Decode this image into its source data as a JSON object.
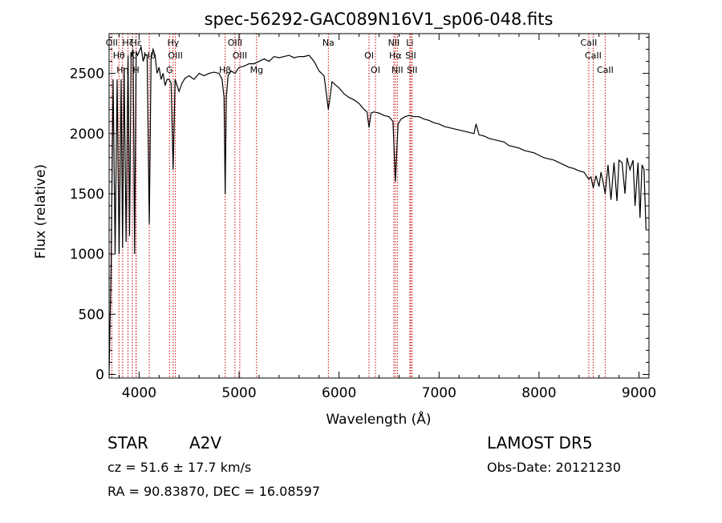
{
  "chart_data": {
    "type": "line",
    "title": "spec-56292-GAC089N16V1_sp06-048.fits",
    "xlabel": "Wavelength (Å)",
    "ylabel": "Flux (relative)",
    "xlim": [
      3700,
      9100
    ],
    "ylim": [
      -30,
      2830
    ],
    "xticks": [
      4000,
      5000,
      6000,
      7000,
      8000,
      9000
    ],
    "xtick_labels": [
      "4000",
      "5000",
      "6000",
      "7000",
      "8000",
      "9000"
    ],
    "yticks": [
      0,
      500,
      1000,
      1500,
      2000,
      2500
    ],
    "ytick_labels": [
      "0",
      "500",
      "1000",
      "1500",
      "2000",
      "2500"
    ],
    "grid": false,
    "line_color": "#000000",
    "marker_color": "#cc0000",
    "series": [
      {
        "x": [
          3700,
          3720,
          3740,
          3760,
          3780,
          3800,
          3820,
          3835,
          3850,
          3870,
          3889,
          3905,
          3920,
          3940,
          3955,
          3970,
          3985,
          4000,
          4020,
          4040,
          4060,
          4080,
          4102,
          4120,
          4140,
          4160,
          4180,
          4200,
          4220,
          4240,
          4260,
          4280,
          4300,
          4320,
          4340,
          4360,
          4380,
          4400,
          4430,
          4460,
          4500,
          4550,
          4600,
          4650,
          4700,
          4750,
          4800,
          4830,
          4850,
          4861,
          4872,
          4890,
          4920,
          4960,
          5000,
          5050,
          5100,
          5150,
          5200,
          5250,
          5300,
          5350,
          5400,
          5450,
          5500,
          5550,
          5600,
          5650,
          5700,
          5750,
          5800,
          5850,
          5893,
          5930,
          5970,
          6000,
          6050,
          6100,
          6150,
          6200,
          6250,
          6280,
          6300,
          6320,
          6350,
          6400,
          6450,
          6500,
          6540,
          6563,
          6590,
          6620,
          6660,
          6700,
          6750,
          6800,
          6850,
          6900,
          6950,
          7000,
          7050,
          7100,
          7150,
          7200,
          7250,
          7300,
          7350,
          7370,
          7400,
          7450,
          7500,
          7550,
          7600,
          7650,
          7700,
          7750,
          7800,
          7850,
          7900,
          7950,
          8000,
          8050,
          8100,
          8150,
          8200,
          8250,
          8300,
          8350,
          8400,
          8450,
          8498,
          8520,
          8542,
          8570,
          8600,
          8620,
          8640,
          8662,
          8690,
          8720,
          8750,
          8780,
          8800,
          8830,
          8860,
          8880,
          8910,
          8940,
          8960,
          8990,
          9010,
          9030,
          9050,
          9070
        ],
        "y": [
          0,
          900,
          2450,
          1000,
          2450,
          1000,
          2450,
          1050,
          2550,
          1100,
          2650,
          1150,
          2650,
          2700,
          1000,
          2680,
          2650,
          2680,
          2720,
          2600,
          2660,
          2650,
          1250,
          2620,
          2700,
          2650,
          2500,
          2550,
          2450,
          2500,
          2400,
          2450,
          2450,
          2420,
          1700,
          2450,
          2400,
          2350,
          2420,
          2460,
          2480,
          2450,
          2500,
          2480,
          2500,
          2510,
          2500,
          2450,
          2300,
          1500,
          2300,
          2480,
          2520,
          2500,
          2550,
          2560,
          2580,
          2580,
          2600,
          2620,
          2600,
          2640,
          2630,
          2640,
          2650,
          2630,
          2640,
          2640,
          2650,
          2600,
          2520,
          2480,
          2200,
          2430,
          2400,
          2380,
          2330,
          2300,
          2280,
          2250,
          2200,
          2180,
          2050,
          2170,
          2180,
          2170,
          2150,
          2140,
          2100,
          1600,
          2080,
          2120,
          2140,
          2150,
          2140,
          2140,
          2120,
          2110,
          2090,
          2080,
          2060,
          2050,
          2040,
          2030,
          2020,
          2010,
          2000,
          2080,
          1990,
          1980,
          1960,
          1950,
          1940,
          1930,
          1900,
          1890,
          1880,
          1860,
          1850,
          1840,
          1820,
          1800,
          1790,
          1780,
          1760,
          1740,
          1720,
          1710,
          1690,
          1680,
          1620,
          1640,
          1550,
          1650,
          1560,
          1680,
          1600,
          1500,
          1740,
          1450,
          1760,
          1440,
          1780,
          1760,
          1500,
          1800,
          1700,
          1780,
          1400,
          1760,
          1300,
          1740,
          1700,
          1200
        ]
      }
    ],
    "lines": [
      {
        "x": 3727,
        "label": "OII"
      },
      {
        "x": 3798,
        "label": "Hθ"
      },
      {
        "x": 3835,
        "label": "Hη"
      },
      {
        "x": 3889,
        "label": "Hζ"
      },
      {
        "x": 3934,
        "label": "K"
      },
      {
        "x": 3970,
        "label": "H"
      },
      {
        "x": 3970,
        "label": "Hε"
      },
      {
        "x": 4102,
        "label": "Hδ"
      },
      {
        "x": 4304,
        "label": "G"
      },
      {
        "x": 4341,
        "label": "Hγ"
      },
      {
        "x": 4363,
        "label": "OIII"
      },
      {
        "x": 4861,
        "label": "Hβ"
      },
      {
        "x": 4959,
        "label": "OIII"
      },
      {
        "x": 5007,
        "label": "OIII"
      },
      {
        "x": 5175,
        "label": "Mg"
      },
      {
        "x": 5893,
        "label": "Na"
      },
      {
        "x": 6300,
        "label": "OI"
      },
      {
        "x": 6364,
        "label": "OI"
      },
      {
        "x": 6548,
        "label": "NII"
      },
      {
        "x": 6563,
        "label": "Hα"
      },
      {
        "x": 6583,
        "label": "NII"
      },
      {
        "x": 6708,
        "label": "Li"
      },
      {
        "x": 6717,
        "label": "SII"
      },
      {
        "x": 6731,
        "label": "SII"
      },
      {
        "x": 8498,
        "label": "CaII"
      },
      {
        "x": 8542,
        "label": "CaII"
      },
      {
        "x": 8662,
        "label": "CaII"
      }
    ]
  },
  "info": {
    "class": "STAR",
    "subclass": "A2V",
    "survey": "LAMOST DR5",
    "cz": "cz = 51.6 ± 17.7 km/s",
    "obsdate": "Obs-Date: 20121230",
    "coords": "RA =  90.83870, DEC =  16.08597"
  }
}
